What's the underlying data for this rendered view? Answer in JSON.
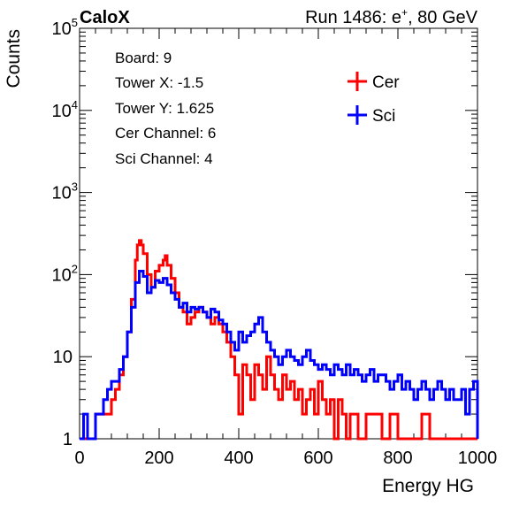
{
  "header": {
    "left_label": "CaloX",
    "right_label_prefix": "Run 1486: e",
    "right_label_sup": "+",
    "right_label_suffix": ", 80 GeV"
  },
  "info_box": {
    "lines": [
      "Board: 9",
      "Tower X: -1.5",
      "Tower Y: 1.625",
      "Cer Channel: 6",
      "Sci Channel: 4"
    ]
  },
  "chart_data": {
    "type": "line",
    "style": "step histogram",
    "xlabel": "Energy HG",
    "ylabel": "Counts",
    "xlim": [
      0,
      1000
    ],
    "ylim": [
      1,
      100000
    ],
    "yscale": "log",
    "grid": false,
    "legend_placement": "top-right",
    "x_tick_labels": [
      "0",
      "200",
      "400",
      "600",
      "800",
      "1000"
    ],
    "y_tick_labels": [
      {
        "base": "1",
        "exp": ""
      },
      {
        "base": "10",
        "exp": ""
      },
      {
        "base": "10",
        "exp": "2"
      },
      {
        "base": "10",
        "exp": "3"
      },
      {
        "base": "10",
        "exp": "4"
      },
      {
        "base": "10",
        "exp": "5"
      }
    ],
    "series": [
      {
        "name": "Cer",
        "color": "#ff0000",
        "points": [
          [
            0,
            1
          ],
          [
            20,
            1
          ],
          [
            40,
            2
          ],
          [
            60,
            2
          ],
          [
            80,
            3
          ],
          [
            90,
            4
          ],
          [
            100,
            6
          ],
          [
            110,
            10
          ],
          [
            120,
            20
          ],
          [
            130,
            50
          ],
          [
            140,
            150
          ],
          [
            145,
            230
          ],
          [
            150,
            260
          ],
          [
            155,
            230
          ],
          [
            160,
            180
          ],
          [
            170,
            100
          ],
          [
            180,
            70
          ],
          [
            190,
            110
          ],
          [
            200,
            130
          ],
          [
            210,
            150
          ],
          [
            215,
            170
          ],
          [
            220,
            130
          ],
          [
            230,
            90
          ],
          [
            240,
            60
          ],
          [
            250,
            40
          ],
          [
            260,
            35
          ],
          [
            270,
            25
          ],
          [
            280,
            30
          ],
          [
            290,
            35
          ],
          [
            300,
            40
          ],
          [
            310,
            35
          ],
          [
            320,
            30
          ],
          [
            330,
            25
          ],
          [
            340,
            30
          ],
          [
            350,
            25
          ],
          [
            360,
            20
          ],
          [
            370,
            15
          ],
          [
            380,
            10
          ],
          [
            390,
            6
          ],
          [
            400,
            2
          ],
          [
            410,
            8
          ],
          [
            420,
            6
          ],
          [
            430,
            3
          ],
          [
            440,
            8
          ],
          [
            450,
            6
          ],
          [
            460,
            4
          ],
          [
            470,
            10
          ],
          [
            480,
            6
          ],
          [
            490,
            4
          ],
          [
            500,
            3
          ],
          [
            510,
            6
          ],
          [
            520,
            4
          ],
          [
            530,
            5
          ],
          [
            540,
            3
          ],
          [
            550,
            4
          ],
          [
            560,
            2
          ],
          [
            570,
            3
          ],
          [
            580,
            4
          ],
          [
            590,
            2
          ],
          [
            600,
            5
          ],
          [
            610,
            3
          ],
          [
            620,
            2
          ],
          [
            630,
            3
          ],
          [
            640,
            1
          ],
          [
            650,
            3
          ],
          [
            660,
            2
          ],
          [
            670,
            1
          ],
          [
            680,
            2
          ],
          [
            700,
            1
          ],
          [
            720,
            2
          ],
          [
            740,
            2
          ],
          [
            760,
            1
          ],
          [
            780,
            2
          ],
          [
            800,
            1
          ],
          [
            820,
            1
          ],
          [
            840,
            1
          ],
          [
            860,
            2
          ],
          [
            880,
            1
          ],
          [
            900,
            1
          ],
          [
            920,
            1
          ],
          [
            940,
            1
          ],
          [
            960,
            1
          ],
          [
            980,
            1
          ],
          [
            1000,
            1
          ]
        ]
      },
      {
        "name": "Sci",
        "color": "#0000ff",
        "points": [
          [
            0,
            1
          ],
          [
            10,
            2
          ],
          [
            20,
            1
          ],
          [
            30,
            1
          ],
          [
            40,
            2
          ],
          [
            50,
            2
          ],
          [
            60,
            3
          ],
          [
            70,
            4
          ],
          [
            80,
            5
          ],
          [
            90,
            5
          ],
          [
            100,
            7
          ],
          [
            110,
            10
          ],
          [
            120,
            20
          ],
          [
            130,
            40
          ],
          [
            140,
            80
          ],
          [
            150,
            110
          ],
          [
            160,
            95
          ],
          [
            170,
            60
          ],
          [
            180,
            70
          ],
          [
            190,
            85
          ],
          [
            200,
            80
          ],
          [
            210,
            90
          ],
          [
            220,
            75
          ],
          [
            230,
            60
          ],
          [
            240,
            50
          ],
          [
            250,
            40
          ],
          [
            260,
            45
          ],
          [
            270,
            35
          ],
          [
            280,
            40
          ],
          [
            290,
            38
          ],
          [
            300,
            40
          ],
          [
            310,
            35
          ],
          [
            320,
            30
          ],
          [
            330,
            38
          ],
          [
            340,
            35
          ],
          [
            350,
            28
          ],
          [
            360,
            25
          ],
          [
            370,
            20
          ],
          [
            380,
            15
          ],
          [
            390,
            12
          ],
          [
            400,
            20
          ],
          [
            410,
            15
          ],
          [
            420,
            18
          ],
          [
            430,
            20
          ],
          [
            440,
            25
          ],
          [
            450,
            30
          ],
          [
            460,
            20
          ],
          [
            470,
            15
          ],
          [
            480,
            12
          ],
          [
            490,
            10
          ],
          [
            500,
            8
          ],
          [
            510,
            10
          ],
          [
            520,
            12
          ],
          [
            530,
            10
          ],
          [
            540,
            9
          ],
          [
            550,
            8
          ],
          [
            560,
            10
          ],
          [
            570,
            12
          ],
          [
            580,
            9
          ],
          [
            590,
            8
          ],
          [
            600,
            7
          ],
          [
            610,
            8
          ],
          [
            620,
            7
          ],
          [
            630,
            6
          ],
          [
            640,
            8
          ],
          [
            650,
            7
          ],
          [
            660,
            6
          ],
          [
            670,
            8
          ],
          [
            680,
            6
          ],
          [
            690,
            7
          ],
          [
            700,
            6
          ],
          [
            710,
            5
          ],
          [
            720,
            6
          ],
          [
            730,
            7
          ],
          [
            740,
            5
          ],
          [
            750,
            6
          ],
          [
            760,
            6
          ],
          [
            770,
            5
          ],
          [
            780,
            4
          ],
          [
            790,
            5
          ],
          [
            800,
            6
          ],
          [
            810,
            4
          ],
          [
            820,
            5
          ],
          [
            830,
            4
          ],
          [
            840,
            3
          ],
          [
            850,
            4
          ],
          [
            860,
            5
          ],
          [
            870,
            4
          ],
          [
            880,
            3
          ],
          [
            890,
            4
          ],
          [
            900,
            5
          ],
          [
            910,
            4
          ],
          [
            920,
            3
          ],
          [
            930,
            4
          ],
          [
            940,
            3
          ],
          [
            950,
            3
          ],
          [
            960,
            4
          ],
          [
            970,
            2
          ],
          [
            980,
            4
          ],
          [
            990,
            5
          ],
          [
            1000,
            1
          ]
        ]
      }
    ]
  }
}
